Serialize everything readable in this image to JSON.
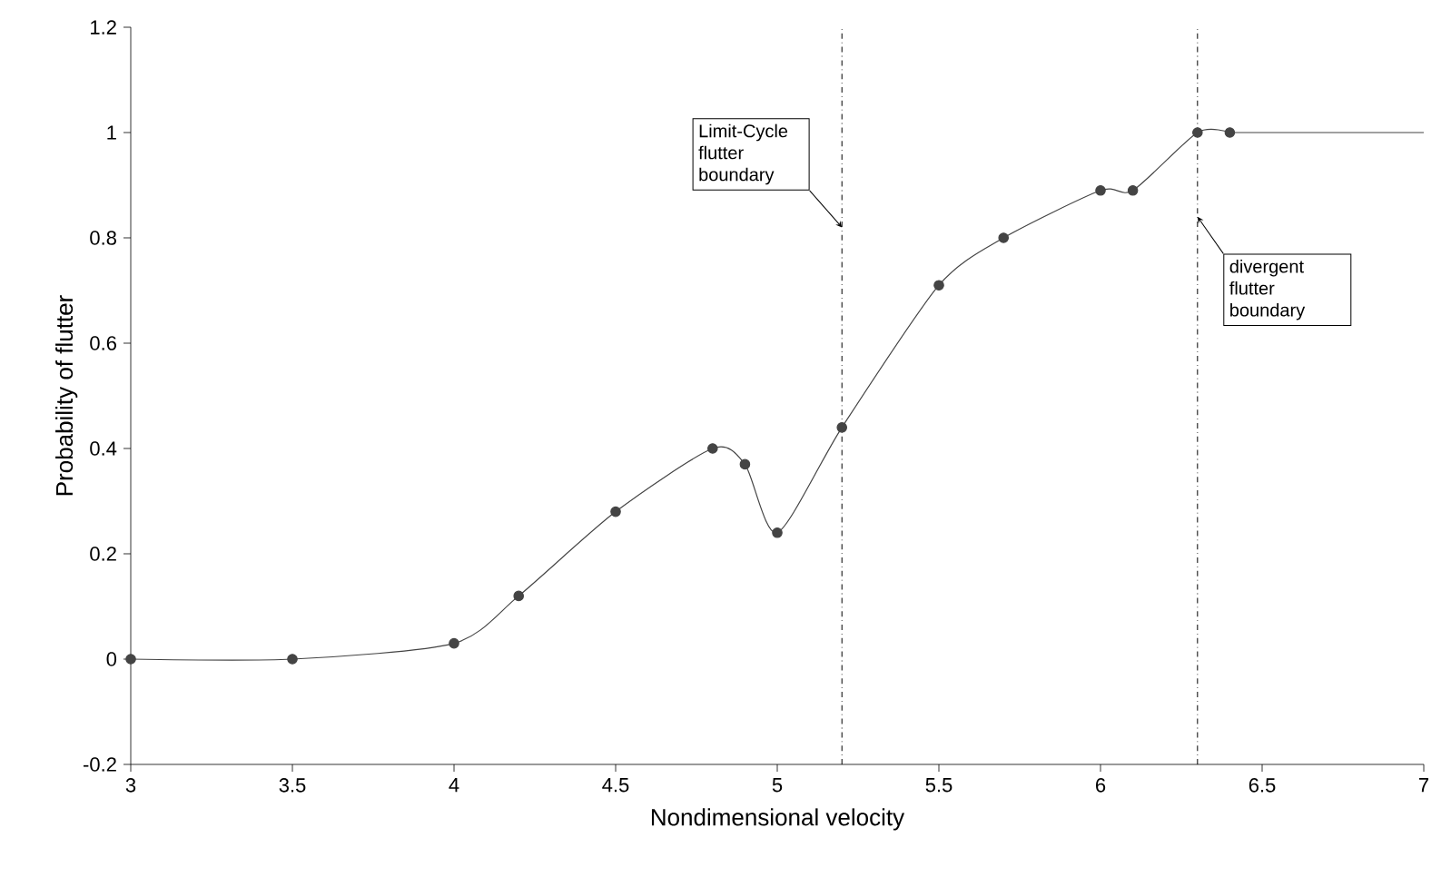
{
  "chart_data": {
    "type": "line",
    "xlabel": "Nondimensional velocity",
    "ylabel": "Probability of flutter",
    "xlim": [
      3,
      7
    ],
    "ylim": [
      -0.2,
      1.2
    ],
    "xticks": [
      3,
      3.5,
      4,
      4.5,
      5,
      5.5,
      6,
      6.5,
      7
    ],
    "yticks": [
      -0.2,
      0,
      0.2,
      0.4,
      0.6,
      0.8,
      1,
      1.2
    ],
    "series": [
      {
        "color": "#444444",
        "marker": "circle",
        "x": [
          3,
          3.5,
          4,
          4.2,
          4.5,
          4.8,
          4.9,
          5.0,
          5.2,
          5.5,
          5.7,
          6.0,
          6.1,
          6.3,
          6.4
        ],
        "values": [
          0,
          0,
          0.03,
          0.12,
          0.28,
          0.4,
          0.37,
          0.24,
          0.44,
          0.71,
          0.8,
          0.89,
          0.89,
          1.0,
          1.0
        ]
      },
      {
        "color": "#444444",
        "marker": "none",
        "x": [
          6.4,
          7
        ],
        "values": [
          1.0,
          1.0
        ]
      }
    ],
    "ref_lines": [
      {
        "axis": "x",
        "value": 5.2,
        "label": "Limit-Cycle flutter boundary",
        "line_style": "dashdot",
        "color": "#000000"
      },
      {
        "axis": "x",
        "value": 6.3,
        "label": "divergent flutter boundary",
        "line_style": "dashdot",
        "color": "#000000"
      }
    ]
  }
}
